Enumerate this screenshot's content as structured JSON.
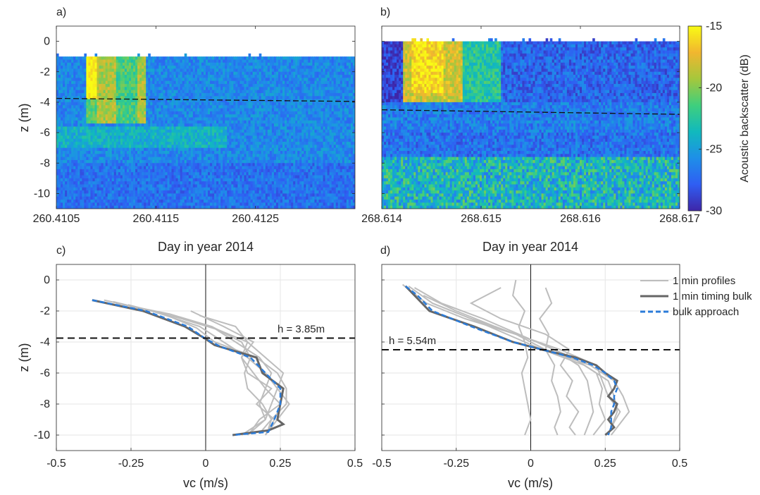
{
  "figure": {
    "panels": [
      "a)",
      "b)",
      "c)",
      "d)"
    ]
  },
  "colorbar": {
    "label": "Acoustic backscatter (dB)",
    "ticks": [
      "-15",
      "-20",
      "-25",
      "-30"
    ],
    "range": [
      -30,
      -15
    ],
    "colormap": [
      "#3e26a8",
      "#2f5ef3",
      "#1e8fe8",
      "#11b9bd",
      "#3fcf7d",
      "#a5c73c",
      "#f1b62f",
      "#f9fb14"
    ]
  },
  "chart_data": [
    {
      "id": "a",
      "type": "heatmap",
      "title": "",
      "xlabel": "Day in year 2014",
      "ylabel": "z (m)",
      "xlim": [
        260.4105,
        260.4135
      ],
      "ylim": [
        -11,
        1
      ],
      "xticks": [
        "260.4105",
        "260.4115",
        "260.4125"
      ],
      "yticks": [
        "0",
        "-2",
        "-4",
        "-6",
        "-8",
        "-10"
      ],
      "value_units": "dB",
      "description_values": {
        "surface_gap_depth": -1,
        "high_backscatter_plume": {
          "x_start": 260.4108,
          "x_end": 260.4111,
          "z_top": -1,
          "z_bottom": -5.5,
          "max_db": -15
        },
        "background_db": -26
      },
      "dashed_line": {
        "x": [
          260.4105,
          260.4135
        ],
        "z": [
          -3.75,
          -3.95
        ]
      }
    },
    {
      "id": "b",
      "type": "heatmap",
      "title": "",
      "xlabel": "Day in year 2014",
      "ylabel": "",
      "xlim": [
        268.614,
        268.617
      ],
      "ylim": [
        -11,
        1
      ],
      "xticks": [
        "268.614",
        "268.615",
        "268.616",
        "268.617"
      ],
      "yticks": [],
      "value_units": "dB",
      "description_values": {
        "surface_gap_depth": 0,
        "high_backscatter_plume": {
          "x_start": 268.6142,
          "x_end": 268.6148,
          "z_top": 0,
          "z_bottom": -4,
          "max_db": -16
        },
        "bottom_layer_db": -22,
        "background_db": -27
      },
      "dashed_line": {
        "x": [
          268.614,
          268.617
        ],
        "z": [
          -4.5,
          -4.8
        ]
      }
    },
    {
      "id": "c",
      "type": "line",
      "xlabel": "vc (m/s)",
      "ylabel": "z (m)",
      "xlim": [
        -0.5,
        0.5
      ],
      "ylim": [
        -11,
        1
      ],
      "xticks": [
        "-0.5",
        "-0.25",
        "0",
        "0.25",
        "0.5"
      ],
      "yticks": [
        "0",
        "-2",
        "-4",
        "-6",
        "-8",
        "-10"
      ],
      "hline": {
        "z": -3.75,
        "label": "h = 3.85m"
      },
      "series": [
        {
          "style": "profile",
          "z": [
            -1.3,
            -2,
            -3,
            -4,
            -5,
            -6,
            -7,
            -8,
            -9,
            -10
          ],
          "x": [
            -0.34,
            -0.18,
            -0.02,
            0.06,
            0.14,
            0.2,
            0.24,
            0.22,
            0.2,
            0.12
          ]
        },
        {
          "style": "profile",
          "z": [
            -1.5,
            -2.2,
            -3,
            -4,
            -5,
            -6,
            -7,
            -8,
            -9,
            -9.8
          ],
          "x": [
            -0.3,
            -0.12,
            0.02,
            0.1,
            0.18,
            0.22,
            0.2,
            0.25,
            0.18,
            0.15
          ]
        },
        {
          "style": "profile",
          "z": [
            -1.6,
            -2.5,
            -3.2,
            -4,
            -5,
            -6,
            -7,
            -8,
            -9,
            -10
          ],
          "x": [
            -0.26,
            -0.08,
            0.04,
            0.14,
            0.12,
            0.16,
            0.2,
            0.18,
            0.2,
            0.14
          ]
        },
        {
          "style": "profile",
          "z": [
            -2,
            -3,
            -4,
            -5,
            -6,
            -7,
            -8,
            -9,
            -10
          ],
          "x": [
            -0.05,
            0.06,
            0.16,
            0.12,
            0.14,
            0.22,
            0.17,
            0.23,
            0.2
          ]
        },
        {
          "style": "profile",
          "z": [
            -2.3,
            -3,
            -4,
            -5,
            -6,
            -7,
            -8,
            -9,
            -10
          ],
          "x": [
            -0.02,
            0.1,
            0.14,
            0.2,
            0.26,
            0.24,
            0.28,
            0.24,
            0.2
          ]
        },
        {
          "style": "profile",
          "z": [
            -1.4,
            -2.2,
            -3.1,
            -4,
            -5,
            -6,
            -7,
            -8,
            -9,
            -9.9
          ],
          "x": [
            -0.31,
            -0.14,
            -0.03,
            0.03,
            0.17,
            0.24,
            0.27,
            0.27,
            0.22,
            0.18
          ]
        },
        {
          "style": "profile",
          "z": [
            -3,
            -4,
            -5,
            -6,
            -7,
            -8,
            -9,
            -9.6
          ],
          "x": [
            0.02,
            0.12,
            0.15,
            0.13,
            0.14,
            0.19,
            0.22,
            0.21
          ]
        },
        {
          "name": "1 min timing bulk",
          "style": "timing",
          "z": [
            -1.3,
            -2,
            -3,
            -3.8,
            -4.2,
            -5,
            -6,
            -7,
            -8,
            -9,
            -9.3,
            -9.7,
            -10
          ],
          "x": [
            -0.38,
            -0.21,
            -0.07,
            0,
            0.03,
            0.17,
            0.19,
            0.26,
            0.25,
            0.24,
            0.26,
            0.21,
            0.09
          ]
        },
        {
          "name": "bulk approach",
          "style": "bulk",
          "z": [
            -1.3,
            -2,
            -3,
            -3.8,
            -4.3,
            -5,
            -6,
            -7,
            -8,
            -9,
            -9.8,
            -10
          ],
          "x": [
            -0.38,
            -0.2,
            -0.06,
            0,
            0.05,
            0.15,
            0.2,
            0.25,
            0.25,
            0.23,
            0.21,
            0.09
          ]
        }
      ]
    },
    {
      "id": "d",
      "type": "line",
      "xlabel": "vc (m/s)",
      "ylabel": "",
      "xlim": [
        -0.5,
        0.5
      ],
      "ylim": [
        -11,
        1
      ],
      "xticks": [
        "-0.5",
        "-0.25",
        "0",
        "0.25",
        "0.5"
      ],
      "yticks": [],
      "hline": {
        "z": -4.5,
        "label": "h = 5.54m"
      },
      "legend": {
        "position": "top-right",
        "entries": [
          "1 min profiles",
          "1 min timing bulk",
          "bulk approach"
        ]
      },
      "series": [
        {
          "name": "1 min profiles",
          "style": "profile",
          "z": [
            -0.4,
            -1.5,
            -2.5,
            -3.5,
            -4.5,
            -5.5,
            -6.5,
            -7.5,
            -8.5,
            -9.5,
            -10
          ],
          "x": [
            -0.41,
            -0.33,
            -0.2,
            -0.08,
            0.04,
            0.18,
            0.26,
            0.28,
            0.29,
            0.27,
            0.26
          ]
        },
        {
          "style": "profile",
          "z": [
            -0.3,
            -1.5,
            -2.5,
            -3.5,
            -4.5,
            -5.5,
            -6.5,
            -7.5,
            -8.5,
            -9.5,
            -10
          ],
          "x": [
            -0.43,
            -0.35,
            -0.22,
            -0.05,
            0.05,
            0.2,
            0.28,
            0.31,
            0.33,
            0.29,
            0.27
          ]
        },
        {
          "style": "profile",
          "z": [
            0,
            -1,
            -2,
            -3,
            -4,
            -5,
            -6,
            -7,
            -8,
            -9,
            -10
          ],
          "x": [
            -0.05,
            -0.06,
            -0.02,
            -0.04,
            -0.02,
            -0.01,
            -0.03,
            -0.02,
            -0.01,
            0,
            -0.02
          ]
        },
        {
          "style": "profile",
          "z": [
            -0.5,
            -1.5,
            -2.5,
            -3.5,
            -4.5,
            -5.5,
            -6.5,
            -7.5,
            -8.5,
            -9.5,
            -10
          ],
          "x": [
            0.05,
            0.07,
            0.03,
            0.06,
            0.05,
            0.08,
            0.07,
            0.09,
            0.1,
            0.08,
            0.09
          ]
        },
        {
          "style": "profile",
          "z": [
            -0.5,
            -1.5,
            -2.5,
            -3.5,
            -4.5,
            -5.5,
            -6.5,
            -7.5,
            -8.5,
            -9.5,
            -10
          ],
          "x": [
            -0.1,
            -0.2,
            -0.1,
            0.05,
            0.13,
            0.1,
            0.14,
            0.12,
            0.16,
            0.13,
            0.15
          ]
        },
        {
          "style": "profile",
          "z": [
            -0.5,
            -1.5,
            -2.5,
            -3.5,
            -4.5,
            -5.5,
            -6.5,
            -7.5,
            -8.5,
            -9.5,
            -10
          ],
          "x": [
            -0.39,
            -0.3,
            -0.16,
            -0.04,
            0.08,
            0.16,
            0.19,
            0.2,
            0.21,
            0.19,
            0.18
          ]
        },
        {
          "style": "profile",
          "z": [
            -1,
            -2,
            -3,
            -4,
            -5,
            -6,
            -7,
            -8,
            -9,
            -10
          ],
          "x": [
            -0.36,
            -0.25,
            -0.12,
            0.02,
            0.14,
            0.22,
            0.24,
            0.23,
            0.25,
            0.21
          ]
        },
        {
          "style": "profile",
          "z": [
            -1.5,
            -2.5,
            -3.5,
            -4.5,
            -5.5,
            -6.5,
            -7.5,
            -8.5,
            -9.5
          ],
          "x": [
            -0.33,
            -0.2,
            -0.05,
            0.1,
            0.22,
            0.24,
            0.26,
            0.3,
            0.27
          ]
        },
        {
          "name": "1 min timing bulk",
          "style": "timing",
          "z": [
            -0.4,
            -1,
            -2,
            -3,
            -4,
            -4.5,
            -5,
            -5.5,
            -6,
            -6.5,
            -7,
            -7.5,
            -8,
            -8.5,
            -9,
            -9.5,
            -10
          ],
          "x": [
            -0.42,
            -0.39,
            -0.34,
            -0.19,
            -0.06,
            0.04,
            0.15,
            0.22,
            0.25,
            0.29,
            0.28,
            0.26,
            0.29,
            0.28,
            0.26,
            0.28,
            0.25
          ]
        },
        {
          "name": "bulk approach",
          "style": "bulk",
          "z": [
            -0.4,
            -1,
            -2,
            -3,
            -4,
            -4.5,
            -5,
            -5.5,
            -6,
            -6.5,
            -7,
            -7.5,
            -8,
            -8.5,
            -9,
            -9.5,
            -10
          ],
          "x": [
            -0.42,
            -0.38,
            -0.33,
            -0.2,
            -0.06,
            0.04,
            0.14,
            0.21,
            0.25,
            0.28,
            0.29,
            0.28,
            0.28,
            0.27,
            0.27,
            0.27,
            0.26
          ]
        }
      ]
    }
  ]
}
